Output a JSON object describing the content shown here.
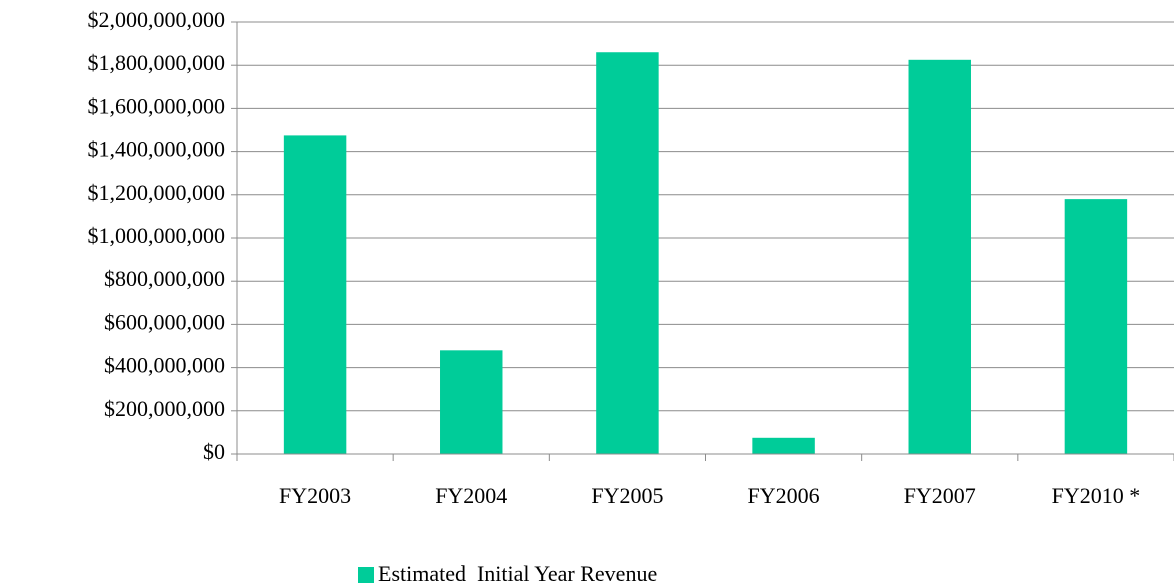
{
  "chart_data": {
    "type": "bar",
    "categories": [
      "FY2003",
      "FY2004",
      "FY2005",
      "FY2006",
      "FY2007",
      "FY2010 *"
    ],
    "series": [
      {
        "name": "Estimated  Initial Year Revenue",
        "color": "#00cc99",
        "values": [
          1475000000,
          480000000,
          1860000000,
          75000000,
          1825000000,
          1180000000
        ]
      }
    ],
    "ylim": [
      0,
      2000000000
    ],
    "yticks": [
      {
        "value": 0,
        "label": "$0"
      },
      {
        "value": 200000000,
        "label": "$200,000,000"
      },
      {
        "value": 400000000,
        "label": "$400,000,000"
      },
      {
        "value": 600000000,
        "label": "$600,000,000"
      },
      {
        "value": 800000000,
        "label": "$800,000,000"
      },
      {
        "value": 1000000000,
        "label": "$1,000,000,000"
      },
      {
        "value": 1200000000,
        "label": "$1,200,000,000"
      },
      {
        "value": 1400000000,
        "label": "$1,400,000,000"
      },
      {
        "value": 1600000000,
        "label": "$1,600,000,000"
      },
      {
        "value": 1800000000,
        "label": "$1,800,000,000"
      },
      {
        "value": 2000000000,
        "label": "$2,000,000,000"
      }
    ],
    "grid": true,
    "legend": "bottom"
  }
}
